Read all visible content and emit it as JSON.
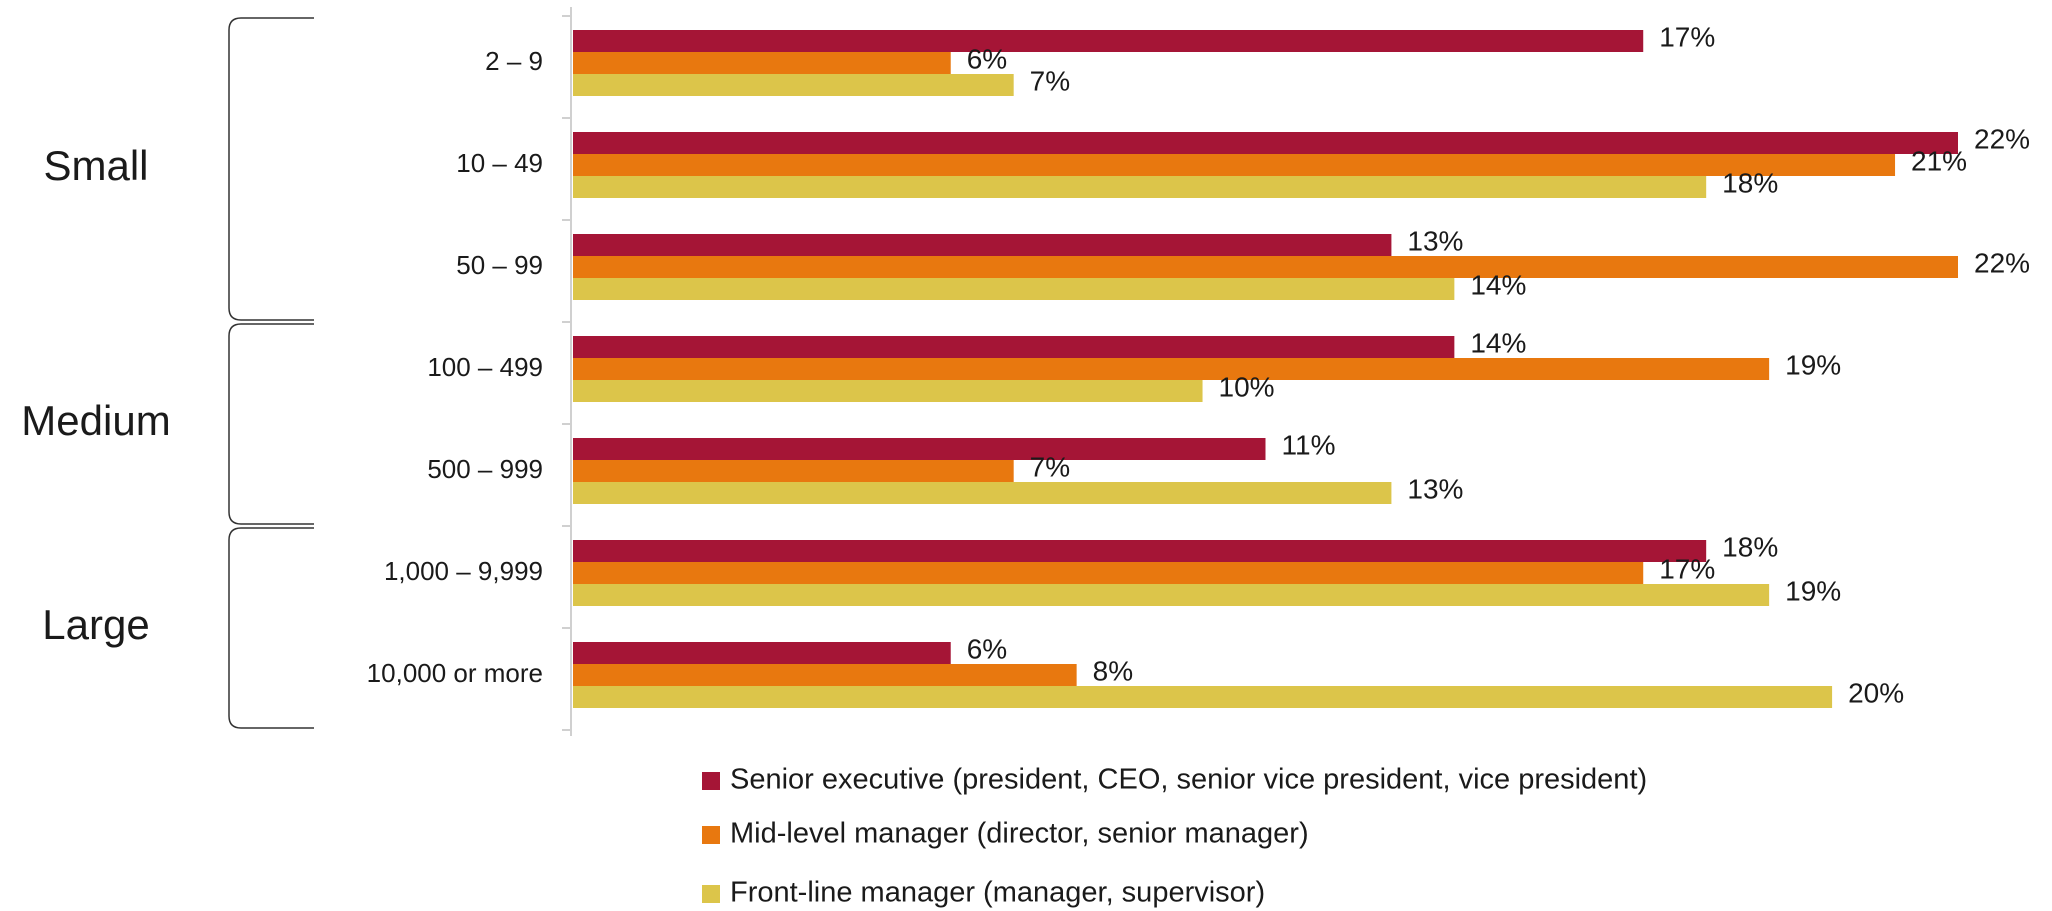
{
  "chart_data": {
    "type": "bar",
    "orientation": "horizontal",
    "categories": [
      "2 – 9",
      "10 – 49",
      "50 – 99",
      "100 – 499",
      "500 – 999",
      "1,000 – 9,999",
      "10,000 or more"
    ],
    "groups": [
      {
        "name": "Small",
        "categories": [
          "2 – 9",
          "10 – 49",
          "50 – 99"
        ]
      },
      {
        "name": "Medium",
        "categories": [
          "100 – 499",
          "500 – 999"
        ]
      },
      {
        "name": "Large",
        "categories": [
          "1,000 – 9,999",
          "10,000 or more"
        ]
      }
    ],
    "series": [
      {
        "name": "Senior executive (president, CEO, senior vice president, vice president)",
        "color": "#a51536",
        "values": [
          17,
          22,
          13,
          14,
          11,
          18,
          6
        ],
        "value_labels": [
          "17%",
          "22%",
          "13%",
          "14%",
          "11%",
          "18%",
          "6%"
        ]
      },
      {
        "name": "Mid-level manager (director, senior manager)",
        "color": "#e8780f",
        "values": [
          6,
          21,
          22,
          19,
          7,
          17,
          8
        ],
        "value_labels": [
          "6%",
          "21%",
          "22%",
          "19%",
          "7%",
          "17%",
          "8%"
        ]
      },
      {
        "name": "Front-line manager (manager, supervisor)",
        "color": "#dcc54a",
        "values": [
          7,
          18,
          14,
          10,
          13,
          19,
          20
        ],
        "value_labels": [
          "7%",
          "18%",
          "14%",
          "10%",
          "13%",
          "19%",
          "20%"
        ]
      }
    ],
    "xlim": [
      0,
      22
    ],
    "legend": "bottom"
  }
}
